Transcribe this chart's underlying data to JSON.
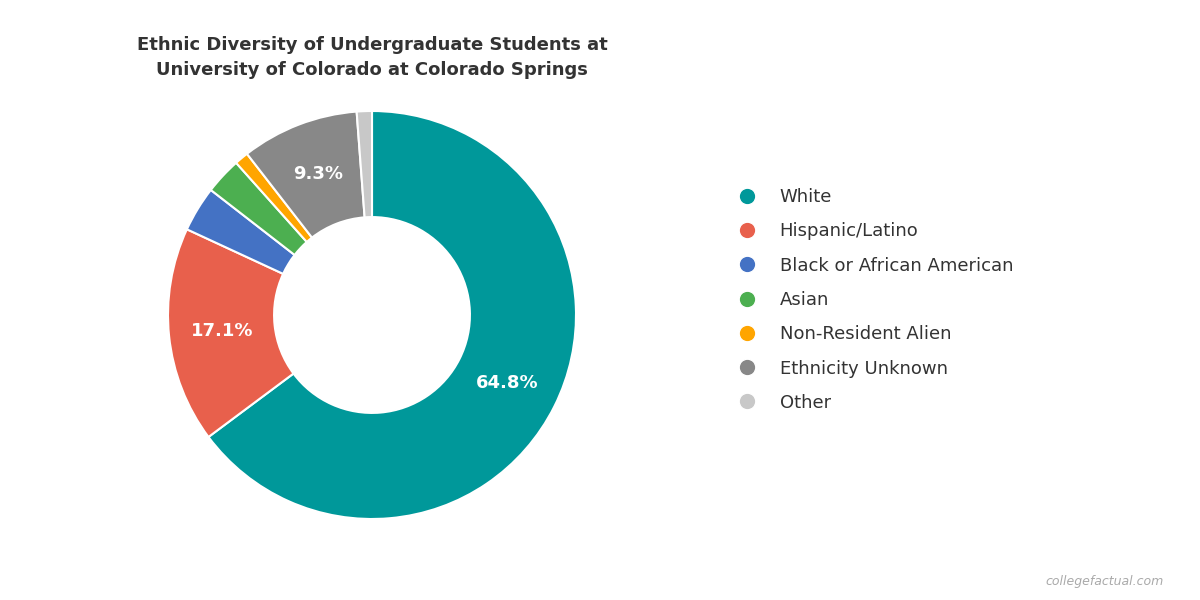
{
  "title": "Ethnic Diversity of Undergraduate Students at\nUniversity of Colorado at Colorado Springs",
  "labels": [
    "White",
    "Hispanic/Latino",
    "Black or African American",
    "Asian",
    "Non-Resident Alien",
    "Ethnicity Unknown",
    "Other"
  ],
  "values": [
    64.8,
    17.1,
    3.6,
    2.9,
    1.1,
    9.3,
    1.2
  ],
  "colors": [
    "#00989A",
    "#E8604C",
    "#4472C4",
    "#4CAF50",
    "#FFA500",
    "#888888",
    "#C8C8C8"
  ],
  "pct_labels": [
    "64.8%",
    "17.1%",
    "",
    "",
    "",
    "9.3%",
    ""
  ],
  "background_color": "#FFFFFF",
  "title_fontsize": 13,
  "label_fontsize": 13,
  "legend_fontsize": 13,
  "watermark": "collegefactual.com"
}
